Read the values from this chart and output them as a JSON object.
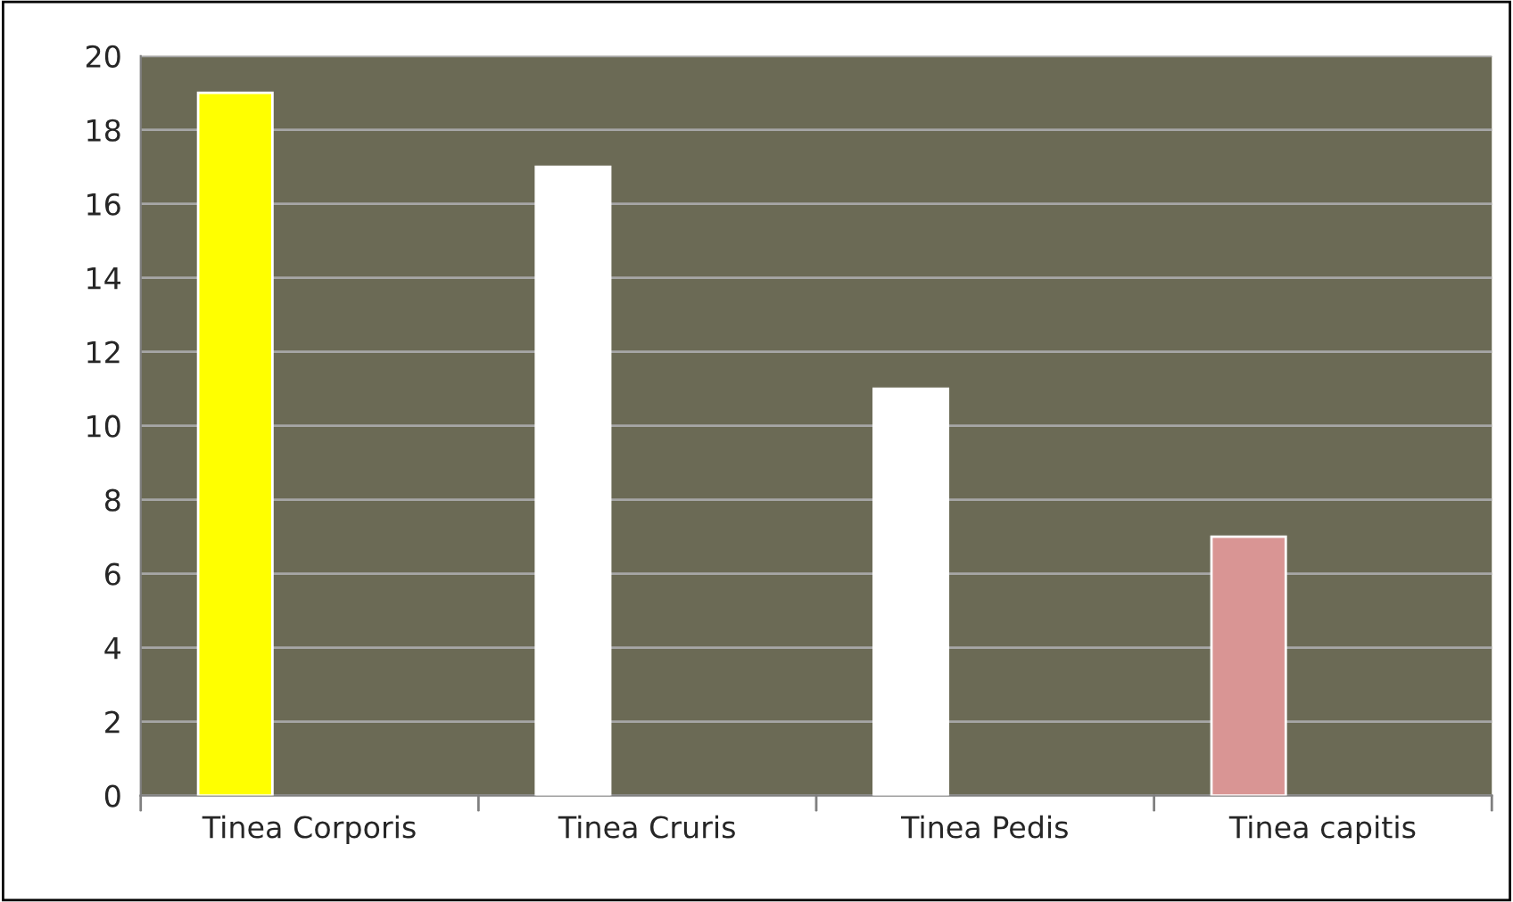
{
  "chart_data": {
    "type": "bar",
    "categories": [
      "Tinea Corporis",
      "Tinea Cruris",
      "Tinea Pedis",
      "Tinea capitis"
    ],
    "values": [
      19,
      17,
      11,
      7
    ],
    "colors": [
      "#ffff00",
      "#ffffff",
      "#ffffff",
      "#d99594"
    ],
    "ylim": [
      0,
      20
    ],
    "yticks": [
      0,
      2,
      4,
      6,
      8,
      10,
      12,
      14,
      16,
      18,
      20
    ],
    "grid": "y",
    "legend": false
  }
}
